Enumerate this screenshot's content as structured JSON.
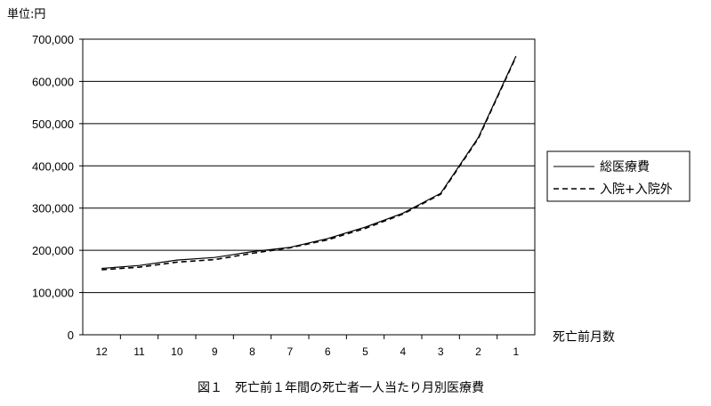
{
  "chart_data": {
    "type": "line",
    "unit_label": "単位:円",
    "xlabel": "死亡前月数",
    "caption": "図１　死亡前１年間の死亡者一人当たり月別医療費",
    "categories": [
      "12",
      "11",
      "10",
      "9",
      "8",
      "7",
      "6",
      "5",
      "4",
      "3",
      "2",
      "1"
    ],
    "ylim": [
      0,
      700000
    ],
    "yticks": [
      "0",
      "100,000",
      "200,000",
      "300,000",
      "400,000",
      "500,000",
      "600,000",
      "700,000"
    ],
    "grid": true,
    "legend_position": "right",
    "series": [
      {
        "name": "総医療費",
        "style": "solid",
        "values": [
          157000,
          164000,
          177000,
          183000,
          197000,
          207000,
          228000,
          255000,
          288000,
          335000,
          467000,
          660000
        ]
      },
      {
        "name": "入院+入院外",
        "style": "dashed",
        "values": [
          154000,
          160000,
          172000,
          178000,
          193000,
          206000,
          225000,
          252000,
          286000,
          333000,
          465000,
          658000
        ]
      }
    ]
  }
}
